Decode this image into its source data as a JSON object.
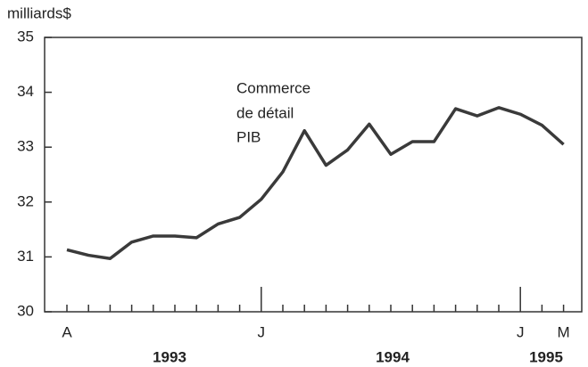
{
  "chart_data": {
    "type": "line",
    "y_label": "milliards$",
    "annotation": [
      "Commerce",
      "de détail",
      "PIB"
    ],
    "categories": [
      "A",
      null,
      null,
      null,
      null,
      null,
      null,
      null,
      null,
      "J",
      null,
      null,
      null,
      null,
      null,
      null,
      null,
      null,
      null,
      null,
      null,
      "J",
      null,
      "M"
    ],
    "year_labels": [
      "1993",
      "1994",
      "1995"
    ],
    "series": [
      {
        "color": "#3a3a3a",
        "values": [
          31.13,
          31.03,
          30.97,
          31.27,
          31.38,
          31.38,
          31.35,
          31.6,
          31.72,
          32.05,
          32.55,
          33.3,
          32.67,
          32.95,
          33.42,
          32.87,
          33.1,
          33.1,
          33.7,
          33.57,
          33.72,
          33.6,
          33.4,
          33.05
        ]
      }
    ],
    "ylim": [
      30,
      35
    ],
    "yticks": [
      30,
      31,
      32,
      33,
      34,
      35
    ]
  }
}
